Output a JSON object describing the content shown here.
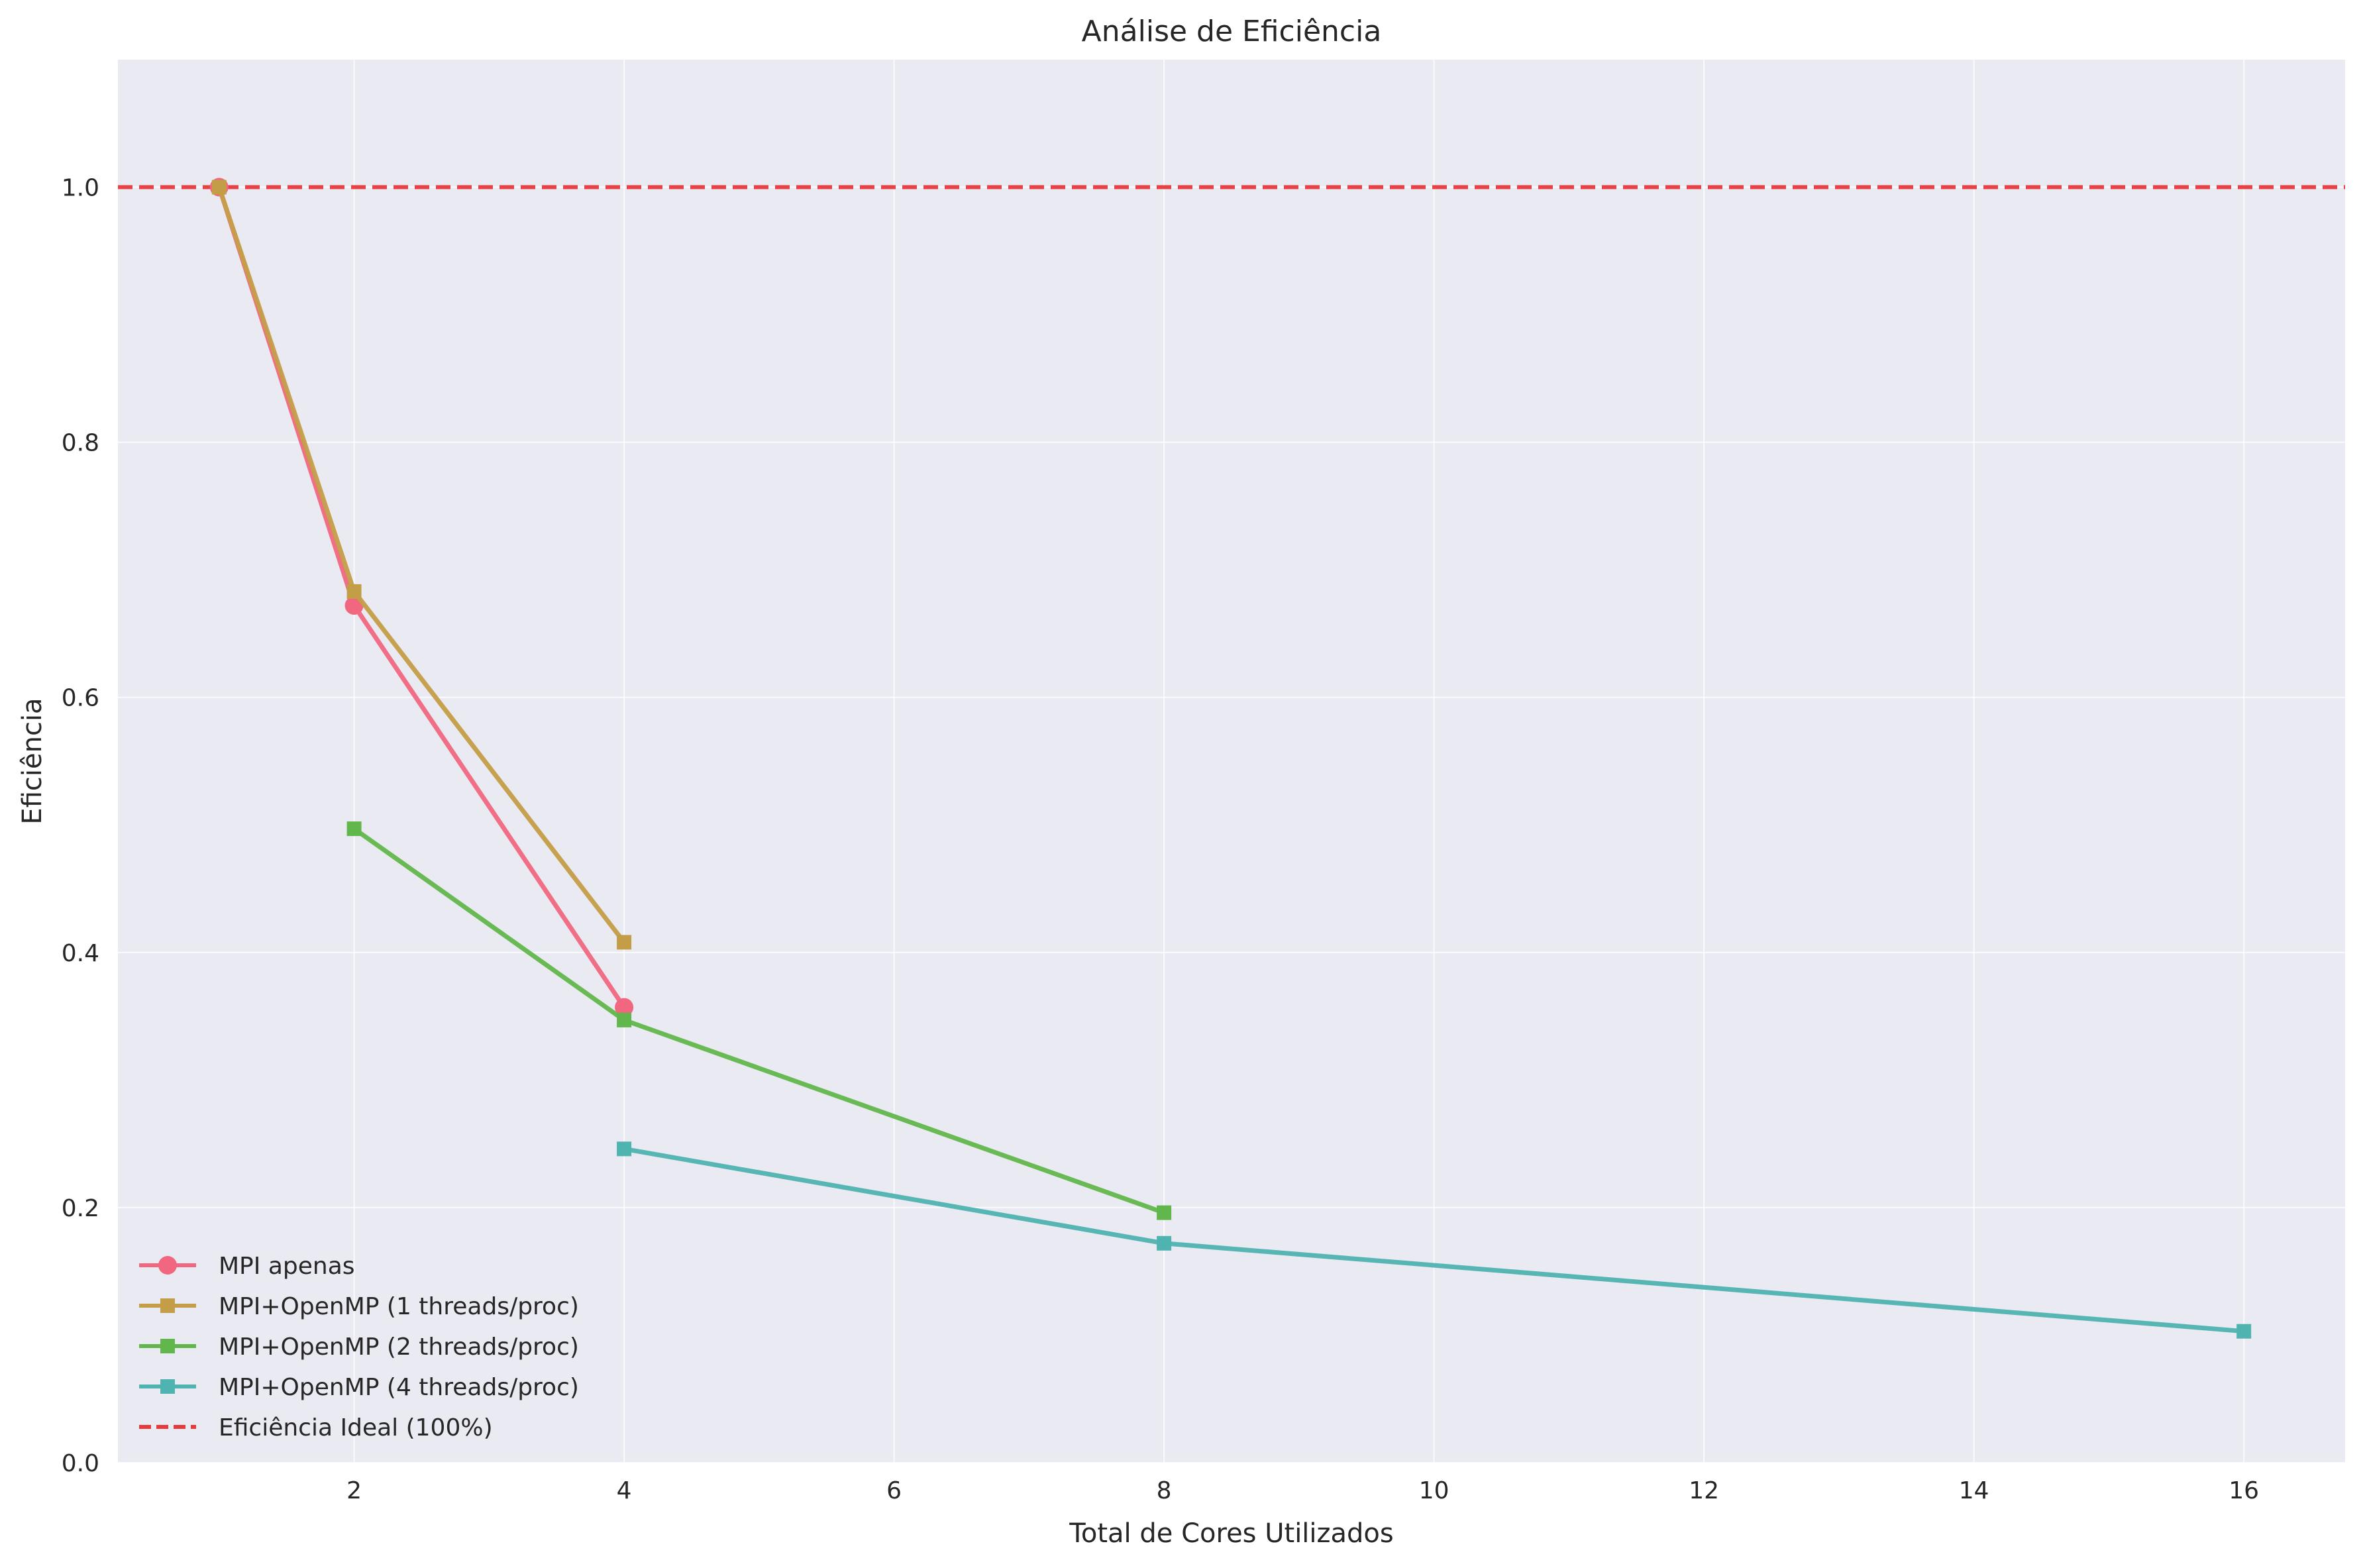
{
  "chart_data": {
    "type": "line",
    "title": "Análise de Eficiência",
    "xlabel": "Total de Cores Utilizados",
    "ylabel": "Eficiência",
    "xlim": [
      0.25,
      16.75
    ],
    "ylim": [
      0.0,
      1.1
    ],
    "xticks": [
      2,
      4,
      6,
      8,
      10,
      12,
      14,
      16
    ],
    "yticks": [
      0.0,
      0.2,
      0.4,
      0.6,
      0.8,
      1.0
    ],
    "xtick_labels": [
      "2",
      "4",
      "6",
      "8",
      "10",
      "12",
      "14",
      "16"
    ],
    "ytick_labels": [
      "0.0",
      "0.2",
      "0.4",
      "0.6",
      "0.8",
      "1.0"
    ],
    "grid": true,
    "legend_position": "lower-left",
    "background_color": "#eaeaf2",
    "series": [
      {
        "name": "MPI apenas",
        "x": [
          1,
          2,
          4
        ],
        "y": [
          1.0,
          0.672,
          0.357
        ],
        "color": "#f0677f",
        "marker": "circle"
      },
      {
        "name": "MPI+OpenMP (1 threads/proc)",
        "x": [
          1,
          2,
          4
        ],
        "y": [
          1.0,
          0.683,
          0.408
        ],
        "color": "#c49e47",
        "marker": "square"
      },
      {
        "name": "MPI+OpenMP (2 threads/proc)",
        "x": [
          2,
          4,
          8
        ],
        "y": [
          0.497,
          0.347,
          0.196
        ],
        "color": "#62b74c",
        "marker": "square"
      },
      {
        "name": "MPI+OpenMP (4 threads/proc)",
        "x": [
          4,
          8,
          16
        ],
        "y": [
          0.246,
          0.172,
          0.103
        ],
        "color": "#4fb3b0",
        "marker": "square"
      }
    ],
    "reference_line": {
      "name": "Eficiência Ideal (100%)",
      "y": 1.0,
      "color": "#e8393c",
      "style": "dashed"
    }
  }
}
